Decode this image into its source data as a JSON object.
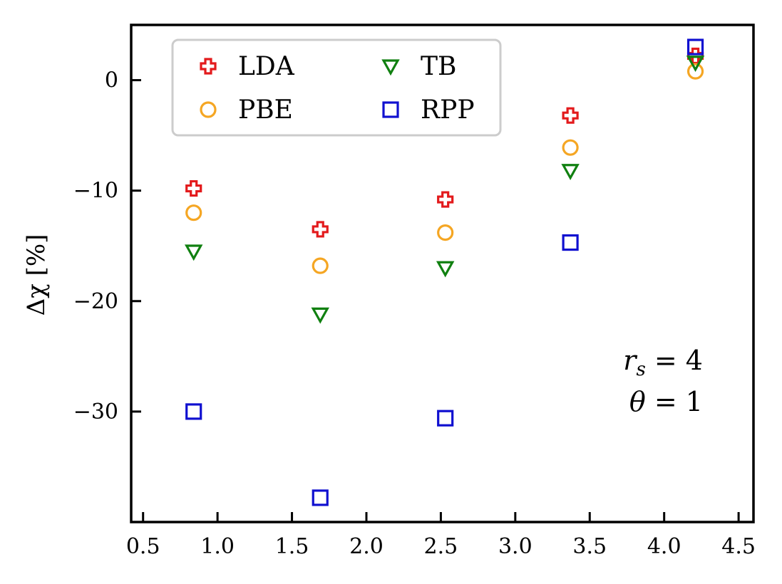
{
  "chart_data": {
    "type": "scatter",
    "title": "",
    "xlabel": "",
    "ylabel": "Δχ [%]",
    "xlim": [
      0.42,
      4.6
    ],
    "ylim": [
      -40.0,
      5.0
    ],
    "xticks": [
      0.5,
      1.0,
      1.5,
      2.0,
      2.5,
      3.0,
      3.5,
      4.0,
      4.5
    ],
    "xtick_labels": [
      "0.5",
      "1.0",
      "1.5",
      "2.0",
      "2.5",
      "3.0",
      "3.5",
      "4.0",
      "4.5"
    ],
    "yticks": [
      0,
      -10,
      -20,
      -30
    ],
    "ytick_labels": [
      "0",
      "−10",
      "−20",
      "−30"
    ],
    "grid": false,
    "legend_position": "top-left",
    "legend_columns": 2,
    "series": [
      {
        "name": "LDA",
        "marker": "plus",
        "color": "#e31a1c",
        "x": [
          0.84,
          1.69,
          2.53,
          3.37,
          4.21
        ],
        "y": [
          -9.8,
          -13.5,
          -10.8,
          -3.2,
          2.2
        ]
      },
      {
        "name": "PBE",
        "marker": "circle",
        "color": "#f5a623",
        "x": [
          0.84,
          1.69,
          2.53,
          3.37,
          4.21
        ],
        "y": [
          -12.0,
          -16.8,
          -13.8,
          -6.1,
          0.8
        ]
      },
      {
        "name": "TB",
        "marker": "triangle-down",
        "color": "#108010",
        "x": [
          0.84,
          1.69,
          2.53,
          3.37,
          4.21
        ],
        "y": [
          -15.5,
          -21.2,
          -17.0,
          -8.2,
          1.6
        ]
      },
      {
        "name": "RPP",
        "marker": "square",
        "color": "#1010d0",
        "x": [
          0.84,
          1.69,
          2.53,
          3.37,
          4.21
        ],
        "y": [
          -30.0,
          -37.8,
          -30.6,
          -14.7,
          3.0
        ]
      }
    ],
    "annotations": [
      "r_s = 4",
      "θ = 1"
    ]
  }
}
